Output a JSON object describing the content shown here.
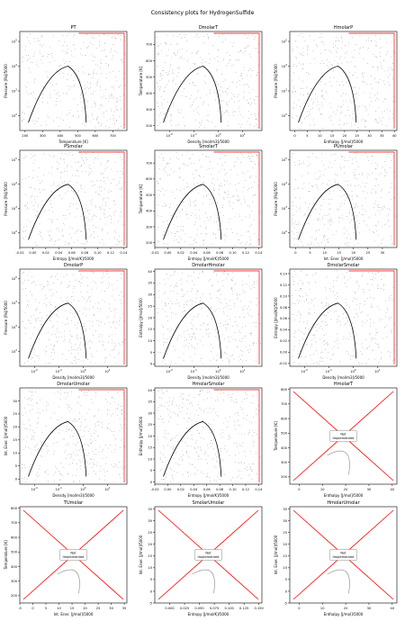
{
  "figure": {
    "title": "Consistency plots for HydrogenSulfide"
  },
  "not_implemented_label": "Not\nImplemented",
  "colors": {
    "grid_points": "#000000",
    "saturation": "#000000",
    "boundary": "#ff0000",
    "not_implemented_line": "#ff0000",
    "not_implemented_curve": "#888888"
  },
  "chart_data": [
    {
      "title": "PT",
      "type": "scatter",
      "xlabel": "Temperature [K]",
      "ylabel": "Pressure [Pa]/5000",
      "xticks": [
        "200",
        "300",
        "400",
        "500",
        "600",
        "700"
      ],
      "yticks": [
        "10^2",
        "10^3",
        "10^4",
        "10^5"
      ],
      "xscale": "linear",
      "yscale": "log",
      "xlim": [
        170,
        780
      ],
      "ylim_log10": [
        1.4,
        5.4
      ],
      "implemented": true
    },
    {
      "title": "DmolarT",
      "type": "scatter",
      "xlabel": "Density [mol/m3]/5000",
      "ylabel": "Temperature [K]",
      "xticks": [
        "10^-2",
        "10^-1",
        "10^0",
        "10^1"
      ],
      "yticks": [
        "200",
        "300",
        "400",
        "500",
        "600",
        "700"
      ],
      "xscale": "log",
      "yscale": "linear",
      "xlim_log10": [
        -2.6,
        1.8
      ],
      "ylim": [
        170,
        780
      ],
      "implemented": true
    },
    {
      "title": "HmolarP",
      "type": "scatter",
      "xlabel": "Enthalpy [J/mol]/5000",
      "ylabel": "Pressure [Pa]/5000",
      "xticks": [
        "0",
        "5",
        "10",
        "15",
        "20",
        "25",
        "30",
        "35",
        "40"
      ],
      "yticks": [
        "10^2",
        "10^3",
        "10^4",
        "10^5"
      ],
      "xscale": "linear",
      "yscale": "log",
      "xlim": [
        -2,
        41
      ],
      "ylim_log10": [
        1.4,
        5.4
      ],
      "implemented": true
    },
    {
      "title": "PSmolar",
      "type": "scatter",
      "xlabel": "Entropy [J/mol/K]/5000",
      "ylabel": "Pressure [Pa]/5000",
      "xticks": [
        "-0.02",
        "0.00",
        "0.02",
        "0.04",
        "0.06",
        "0.08",
        "0.10",
        "0.12",
        "0.14"
      ],
      "yticks": [
        "10^2",
        "10^3",
        "10^4",
        "10^5"
      ],
      "xscale": "linear",
      "yscale": "log",
      "xlim": [
        -0.02,
        0.145
      ],
      "ylim_log10": [
        1.4,
        5.4
      ],
      "implemented": true
    },
    {
      "title": "SmolarT",
      "type": "scatter",
      "xlabel": "Entropy [J/mol/K]/5000",
      "ylabel": "Temperature [K]",
      "xticks": [
        "-0.02",
        "0.00",
        "0.02",
        "0.04",
        "0.06",
        "0.08",
        "0.10",
        "0.12",
        "0.14"
      ],
      "yticks": [
        "200",
        "300",
        "400",
        "500",
        "600",
        "700"
      ],
      "xscale": "linear",
      "yscale": "linear",
      "xlim": [
        -0.02,
        0.145
      ],
      "ylim": [
        170,
        780
      ],
      "implemented": true
    },
    {
      "title": "PUmolar",
      "type": "scatter",
      "xlabel": "Int. Ener. [J/mol]/5000",
      "ylabel": "Pressure [Pa]/5000",
      "xticks": [
        "0",
        "5",
        "10",
        "15",
        "20",
        "25",
        "30"
      ],
      "yticks": [
        "10^2",
        "10^3",
        "10^4",
        "10^5"
      ],
      "xscale": "linear",
      "yscale": "log",
      "xlim": [
        -2,
        35
      ],
      "ylim_log10": [
        1.4,
        5.4
      ],
      "implemented": true
    },
    {
      "title": "DmolarP",
      "type": "scatter",
      "xlabel": "Density [mol/m3]/5000",
      "ylabel": "Pressure [Pa]/5000",
      "xticks": [
        "10^-2",
        "10^-1",
        "10^0",
        "10^1"
      ],
      "yticks": [
        "10^2",
        "10^3",
        "10^4",
        "10^5"
      ],
      "xscale": "log",
      "yscale": "log",
      "xlim_log10": [
        -2.6,
        1.8
      ],
      "ylim_log10": [
        1.4,
        5.4
      ],
      "implemented": true
    },
    {
      "title": "DmolarHmolar",
      "type": "scatter",
      "xlabel": "Density [mol/m3]/5000",
      "ylabel": "Enthalpy [J/mol]/5000",
      "xticks": [
        "10^-2",
        "10^-1",
        "10^0",
        "10^1"
      ],
      "yticks": [
        "0",
        "5",
        "10",
        "15",
        "20",
        "25",
        "30",
        "35",
        "40"
      ],
      "xscale": "log",
      "yscale": "linear",
      "xlim_log10": [
        -2.6,
        1.8
      ],
      "ylim": [
        -1,
        41
      ],
      "implemented": true
    },
    {
      "title": "DmolarSmolar",
      "type": "scatter",
      "xlabel": "Density [mol/m3]/5000",
      "ylabel": "Entropy [J/mol/K]/5000",
      "xticks": [
        "10^-2",
        "10^-1",
        "10^0",
        "10^1"
      ],
      "yticks": [
        "-0.02",
        "0.00",
        "0.02",
        "0.04",
        "0.06",
        "0.08",
        "0.10",
        "0.12",
        "0.14"
      ],
      "xscale": "log",
      "yscale": "linear",
      "xlim_log10": [
        -2.6,
        1.8
      ],
      "ylim": [
        -0.025,
        0.148
      ],
      "implemented": true
    },
    {
      "title": "DmolarUmolar",
      "type": "scatter",
      "xlabel": "Density [mol/m3]/5000",
      "ylabel": "Int. Ener. [J/mol]/5000",
      "xticks": [
        "10^-2",
        "10^-1",
        "10^0",
        "10^1"
      ],
      "yticks": [
        "0",
        "5",
        "10",
        "15",
        "20",
        "25",
        "30"
      ],
      "xscale": "log",
      "yscale": "linear",
      "xlim_log10": [
        -2.6,
        1.8
      ],
      "ylim": [
        -2,
        35
      ],
      "implemented": true
    },
    {
      "title": "HmolarSmolar",
      "type": "scatter",
      "xlabel": "Entropy [J/mol/K]/5000",
      "ylabel": "Enthalpy [J/mol]/5000",
      "xticks": [
        "-0.02",
        "0.00",
        "0.02",
        "0.04",
        "0.06",
        "0.08",
        "0.10",
        "0.12",
        "0.14"
      ],
      "yticks": [
        "0",
        "5",
        "10",
        "15",
        "20",
        "25",
        "30",
        "35",
        "40"
      ],
      "xscale": "linear",
      "yscale": "linear",
      "xlim": [
        -0.02,
        0.145
      ],
      "ylim": [
        -1,
        41
      ],
      "implemented": true
    },
    {
      "title": "HmolarT",
      "type": "scatter",
      "xlabel": "Enthalpy [J/mol]/5000",
      "ylabel": "Temperature [K]",
      "xticks": [
        "0",
        "10",
        "20",
        "30",
        "40"
      ],
      "yticks": [
        "200",
        "300",
        "400",
        "500",
        "600",
        "700",
        "800"
      ],
      "xscale": "linear",
      "yscale": "linear",
      "xlim": [
        -4,
        42
      ],
      "ylim": [
        150,
        810
      ],
      "implemented": false
    },
    {
      "title": "TUmolar",
      "type": "scatter",
      "xlabel": "Int. Ener. [J/mol]/5000",
      "ylabel": "Temperature [K]",
      "xticks": [
        "-5",
        "0",
        "5",
        "10",
        "15",
        "20",
        "25",
        "30",
        "35"
      ],
      "yticks": [
        "200",
        "300",
        "400",
        "500",
        "600",
        "700",
        "800"
      ],
      "xscale": "linear",
      "yscale": "linear",
      "xlim": [
        -5,
        36
      ],
      "ylim": [
        150,
        810
      ],
      "implemented": false
    },
    {
      "title": "SmolarUmolar",
      "type": "scatter",
      "xlabel": "Entropy [J/mol/K]/5000",
      "ylabel": "Int. Ener. [J/mol]/5000",
      "xticks": [
        "0.000",
        "0.025",
        "0.050",
        "0.075",
        "0.100",
        "0.125",
        "0.150"
      ],
      "yticks": [
        "-5",
        "0",
        "5",
        "10",
        "15",
        "20",
        "25",
        "30",
        "35"
      ],
      "xscale": "linear",
      "yscale": "linear",
      "xlim": [
        -0.025,
        0.155
      ],
      "ylim": [
        -5,
        36
      ],
      "implemented": false
    },
    {
      "title": "HmolarUmolar",
      "type": "scatter",
      "xlabel": "Enthalpy [J/mol]/5000",
      "ylabel": "Int. Ener. [J/mol]/5000",
      "xticks": [
        "0",
        "10",
        "20",
        "30",
        "40"
      ],
      "yticks": [
        "-5",
        "0",
        "5",
        "10",
        "15",
        "20",
        "25",
        "30",
        "35"
      ],
      "xscale": "linear",
      "yscale": "linear",
      "xlim": [
        -4,
        42
      ],
      "ylim": [
        -5,
        36
      ],
      "implemented": false
    }
  ]
}
